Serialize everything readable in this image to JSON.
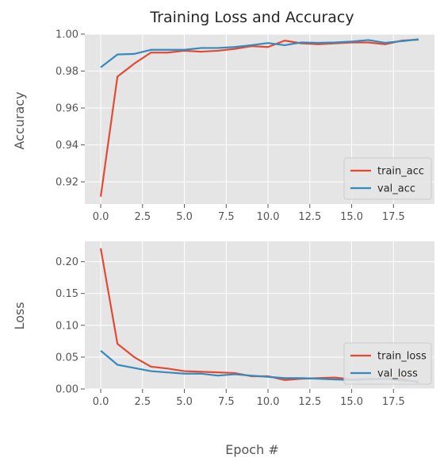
{
  "figure": {
    "title": "Training Loss and Accuracy",
    "xlabel": "Epoch #",
    "colors": {
      "background": "#e5e5e5",
      "grid": "#ffffff",
      "train": "#e24a33",
      "val": "#348abd"
    }
  },
  "chart_data": [
    {
      "type": "line",
      "ylabel": "Accuracy",
      "grid": true,
      "legend_position": "lower-right",
      "xlim": [
        -0.95,
        19.95
      ],
      "ylim": [
        0.908,
        1.0
      ],
      "xticks": [
        0,
        2.5,
        5,
        7.5,
        10,
        12.5,
        15,
        17.5
      ],
      "xtick_labels": [
        "0.0",
        "2.5",
        "5.0",
        "7.5",
        "10.0",
        "12.5",
        "15.0",
        "17.5"
      ],
      "yticks": [
        0.92,
        0.94,
        0.96,
        0.98,
        1.0
      ],
      "ytick_labels": [
        "0.92",
        "0.94",
        "0.96",
        "0.98",
        "1.00"
      ],
      "x": [
        0,
        1,
        2,
        3,
        4,
        5,
        6,
        7,
        8,
        9,
        10,
        11,
        12,
        13,
        14,
        15,
        16,
        17,
        18,
        19
      ],
      "series": [
        {
          "name": "train_acc",
          "color": "#e24a33",
          "values": [
            0.912,
            0.977,
            0.984,
            0.99,
            0.99,
            0.991,
            0.9905,
            0.991,
            0.992,
            0.9935,
            0.993,
            0.9965,
            0.995,
            0.9945,
            0.995,
            0.9955,
            0.9955,
            0.9945,
            0.9965,
            0.997
          ]
        },
        {
          "name": "val_acc",
          "color": "#348abd",
          "values": [
            0.982,
            0.989,
            0.9893,
            0.9915,
            0.9915,
            0.9915,
            0.9925,
            0.9925,
            0.993,
            0.994,
            0.9952,
            0.994,
            0.9955,
            0.9953,
            0.9955,
            0.996,
            0.9968,
            0.9953,
            0.9962,
            0.9972
          ]
        }
      ]
    },
    {
      "type": "line",
      "ylabel": "Loss",
      "grid": true,
      "legend_position": "lower-right",
      "xlim": [
        -0.95,
        19.95
      ],
      "ylim": [
        0.0,
        0.232
      ],
      "xticks": [
        0,
        2.5,
        5,
        7.5,
        10,
        12.5,
        15,
        17.5
      ],
      "xtick_labels": [
        "0.0",
        "2.5",
        "5.0",
        "7.5",
        "10.0",
        "12.5",
        "15.0",
        "17.5"
      ],
      "yticks": [
        0.0,
        0.05,
        0.1,
        0.15,
        0.2
      ],
      "ytick_labels": [
        "0.00",
        "0.05",
        "0.10",
        "0.15",
        "0.20"
      ],
      "x": [
        0,
        1,
        2,
        3,
        4,
        5,
        6,
        7,
        8,
        9,
        10,
        11,
        12,
        13,
        14,
        15,
        16,
        17,
        18,
        19
      ],
      "series": [
        {
          "name": "train_loss",
          "color": "#e24a33",
          "values": [
            0.221,
            0.071,
            0.05,
            0.035,
            0.032,
            0.028,
            0.027,
            0.026,
            0.025,
            0.02,
            0.02,
            0.014,
            0.016,
            0.017,
            0.018,
            0.015,
            0.016,
            0.016,
            0.016,
            0.01
          ]
        },
        {
          "name": "val_loss",
          "color": "#348abd",
          "values": [
            0.06,
            0.038,
            0.033,
            0.028,
            0.026,
            0.024,
            0.024,
            0.021,
            0.023,
            0.021,
            0.019,
            0.017,
            0.017,
            0.016,
            0.015,
            0.014,
            0.015,
            0.016,
            0.013,
            0.012
          ]
        }
      ]
    }
  ]
}
